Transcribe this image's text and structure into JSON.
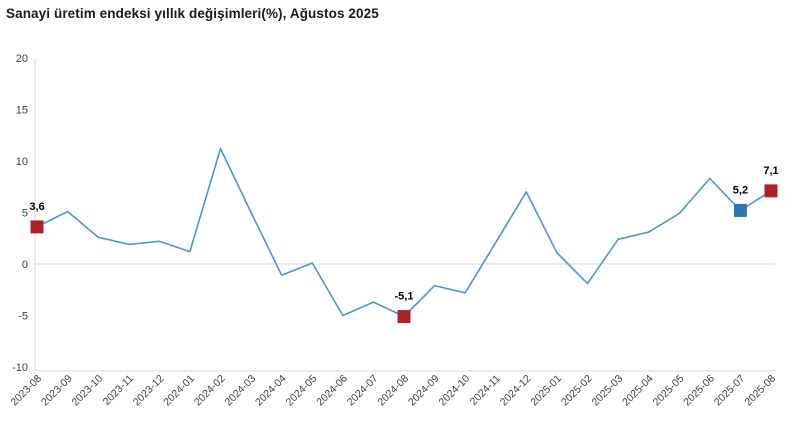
{
  "title": "Sanayi üretim endeksi yıllık değişimleri(%), Ağustos 2025",
  "colors": {
    "background": "#ffffff",
    "axis_line": "#d9d9d9",
    "zero_gridline": "#d9d9d9",
    "tick_text": "#404040",
    "data_label_text": "#000000",
    "title_text": "#1a1a1a"
  },
  "chart_data": {
    "type": "line",
    "title": "Sanayi üretim endeksi yıllık değişimleri(%), Ağustos 2025",
    "xlabel": "",
    "ylabel": "",
    "x": [
      "2023-08",
      "2023-09",
      "2023-10",
      "2023-11",
      "2023-12",
      "2024-01",
      "2024-02",
      "2024-03",
      "2024-04",
      "2024-05",
      "2024-06",
      "2024-07",
      "2024-08",
      "2024-09",
      "2024-10",
      "2024-11",
      "2024-12",
      "2025-01",
      "2025-02",
      "2025-03",
      "2025-04",
      "2025-05",
      "2025-06",
      "2025-07",
      "2025-08"
    ],
    "values": [
      3.6,
      5.1,
      2.6,
      1.9,
      2.2,
      1.2,
      11.2,
      5.0,
      -1.1,
      0.1,
      -5.0,
      -3.7,
      -5.1,
      -2.1,
      -2.8,
      2.1,
      7.0,
      1.1,
      -1.9,
      2.4,
      3.1,
      4.9,
      8.3,
      5.2,
      7.1
    ],
    "ylim": [
      -10,
      20
    ],
    "yticks": [
      20,
      15,
      10,
      5,
      0,
      -5,
      -10
    ],
    "grid": "zero-line-only",
    "legend": "none",
    "line_color": "#4f93d3",
    "labeled_points": [
      {
        "x": "2023-08",
        "index": 0,
        "value": 3.6,
        "label": "3,6",
        "marker_color": "#ab2328"
      },
      {
        "x": "2024-08",
        "index": 12,
        "value": -5.1,
        "label": "-5,1",
        "marker_color": "#ab2328"
      },
      {
        "x": "2025-07",
        "index": 23,
        "value": 5.2,
        "label": "5,2",
        "marker_color": "#2e75b6"
      },
      {
        "x": "2025-08",
        "index": 24,
        "value": 7.1,
        "label": "7,1",
        "marker_color": "#ab2328"
      }
    ]
  }
}
